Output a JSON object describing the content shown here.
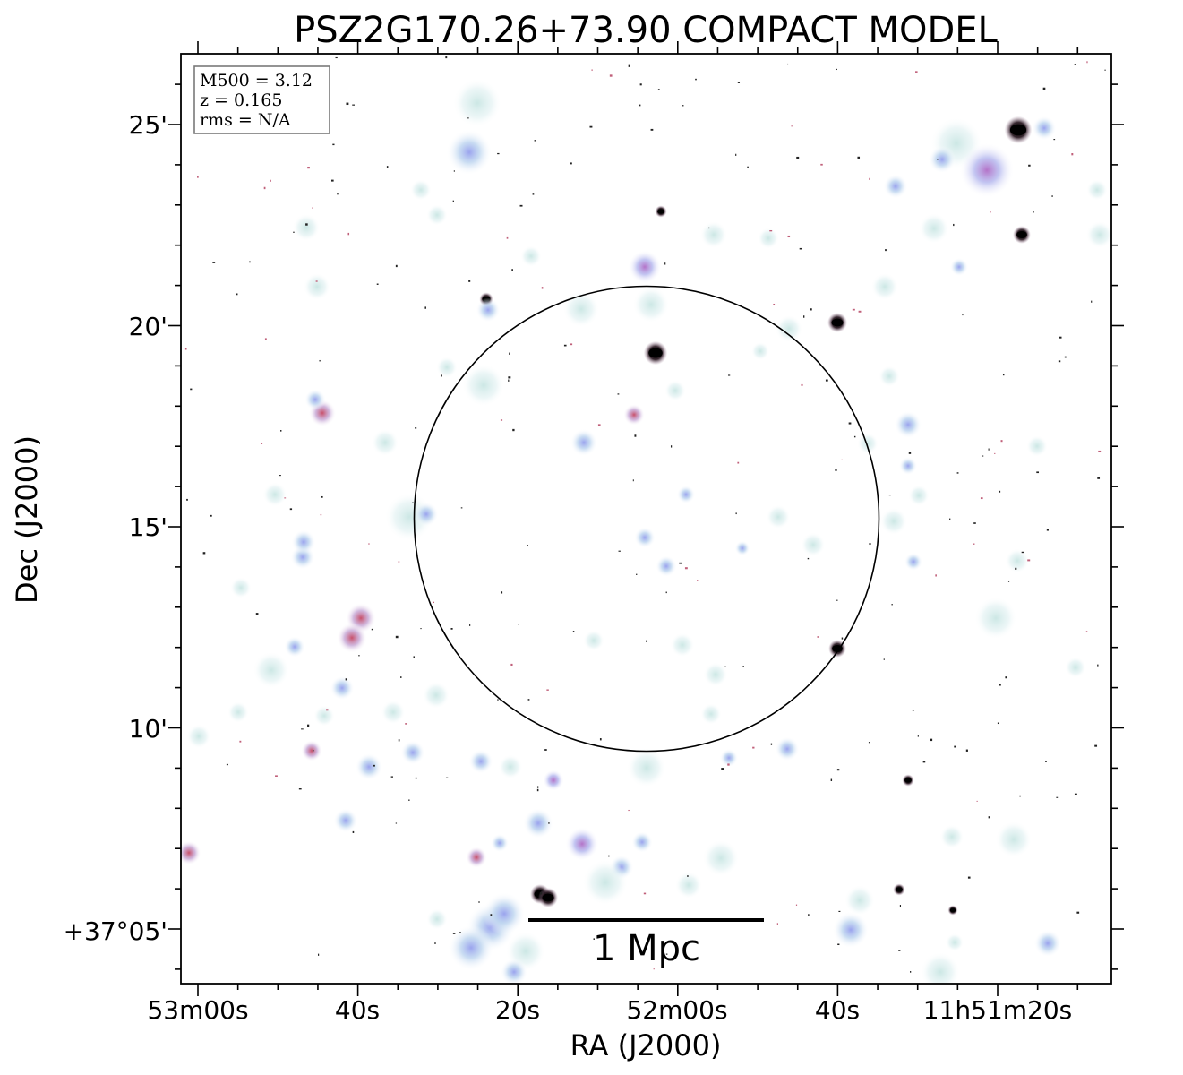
{
  "chart_data": {
    "type": "scatter",
    "title": "PSZ2G170.26+73.90 COMPACT MODEL",
    "xlabel": "RA (J2000)",
    "ylabel": "Dec (J2000)",
    "x_ticks": [
      "53m00s",
      "40s",
      "20s",
      "52m00s",
      "40s",
      "11h51m20s"
    ],
    "y_ticks": [
      "25'",
      "20'",
      "15'",
      "10'",
      "+37°05'"
    ],
    "info_box": {
      "lines": [
        "M500 = 3.12",
        "z = 0.165",
        "rms = N/A"
      ]
    },
    "scale_bar": {
      "label": "1 Mpc"
    },
    "grid": false,
    "colors": {
      "background": "#ffffff",
      "faint_source": "#cfe8e6",
      "blue_source": "#aab4ee",
      "red_source": "#d0607a",
      "core": "#000000",
      "circle": "#000000"
    }
  }
}
